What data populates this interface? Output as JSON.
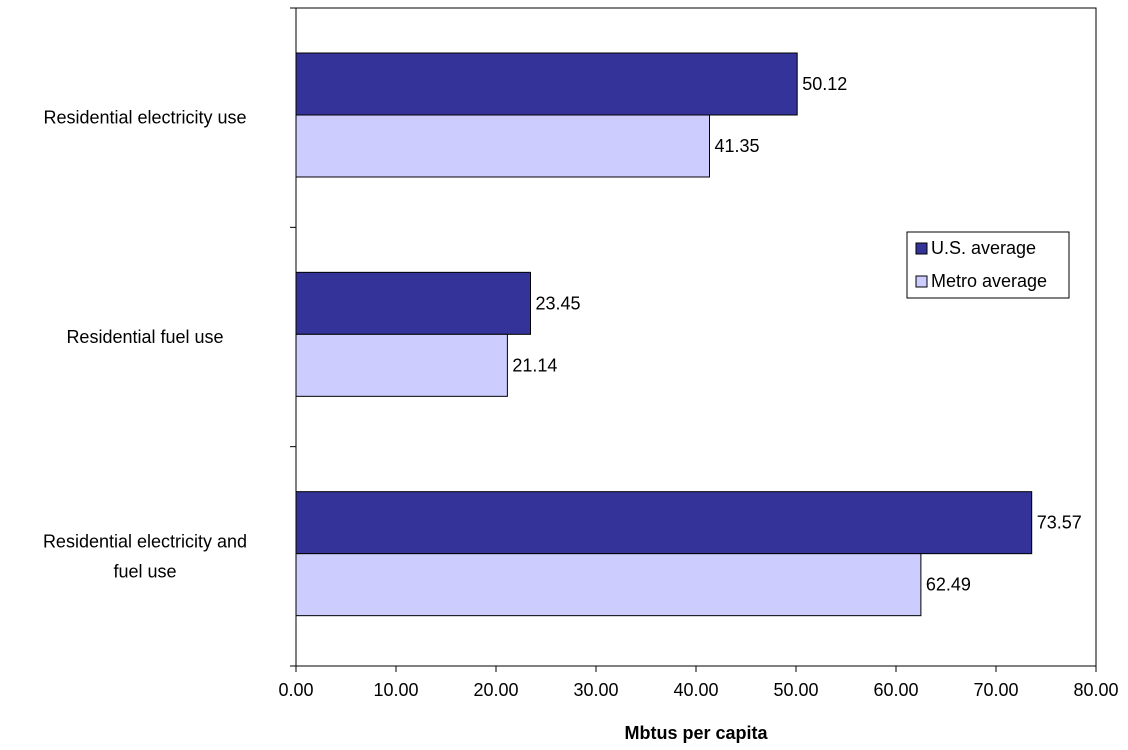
{
  "chart_data": {
    "type": "bar",
    "orientation": "horizontal",
    "categories": [
      [
        "Residential electricity use"
      ],
      [
        "Residential fuel use"
      ],
      [
        "Residential electricity and",
        "fuel use"
      ]
    ],
    "series": [
      {
        "name": "U.S. average",
        "color": "#333399",
        "values": [
          50.12,
          23.45,
          73.57
        ],
        "labels": [
          "50.12",
          "23.45",
          "73.57"
        ]
      },
      {
        "name": "Metro average",
        "color": "#ccccff",
        "values": [
          41.35,
          21.14,
          62.49
        ],
        "labels": [
          "41.35",
          "21.14",
          "62.49"
        ]
      }
    ],
    "xlabel": "Mbtus per capita",
    "xlim": [
      0,
      80
    ],
    "xticks": [
      0,
      10,
      20,
      30,
      40,
      50,
      60,
      70,
      80
    ],
    "xtick_labels": [
      "0.00",
      "10.00",
      "20.00",
      "30.00",
      "40.00",
      "50.00",
      "60.00",
      "70.00",
      "80.00"
    ],
    "grid": false,
    "legend": "right"
  }
}
